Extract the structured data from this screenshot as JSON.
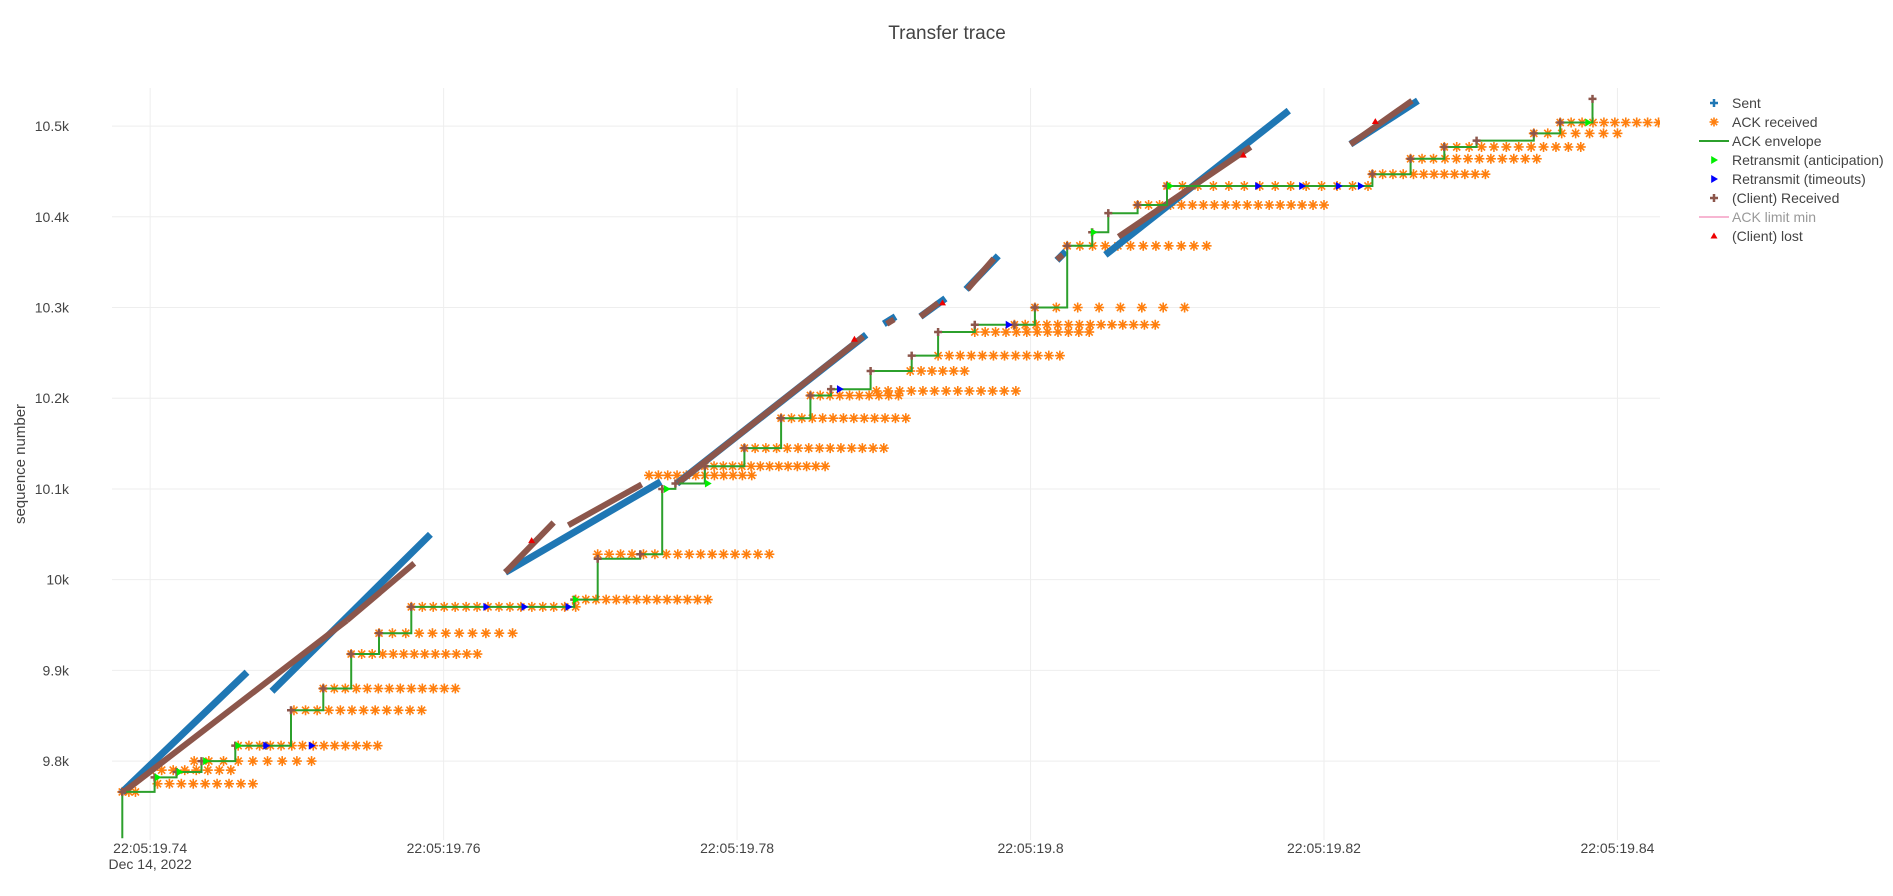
{
  "chart_data": {
    "type": "scatter",
    "title": "Transfer trace",
    "xlabel": "",
    "ylabel": "sequence number",
    "x_range": [
      19.7374,
      19.8429
    ],
    "x_range_note": "seconds after 22:05 on Dec 14, 2022",
    "ylim": [
      9713,
      10542
    ],
    "grid": true,
    "legend_position": "right",
    "x_ticks": [
      {
        "value": 19.74,
        "label": "22:05:19.74",
        "sublabel": "Dec 14, 2022"
      },
      {
        "value": 19.76,
        "label": "22:05:19.76",
        "sublabel": ""
      },
      {
        "value": 19.78,
        "label": "22:05:19.78",
        "sublabel": ""
      },
      {
        "value": 19.8,
        "label": "22:05:19.8",
        "sublabel": ""
      },
      {
        "value": 19.82,
        "label": "22:05:19.82",
        "sublabel": ""
      },
      {
        "value": 19.84,
        "label": "22:05:19.84",
        "sublabel": ""
      }
    ],
    "y_ticks": [
      {
        "value": 9800,
        "label": "9.8k"
      },
      {
        "value": 9900,
        "label": "9.9k"
      },
      {
        "value": 10000,
        "label": "10k"
      },
      {
        "value": 10100,
        "label": "10.1k"
      },
      {
        "value": 10200,
        "label": "10.2k"
      },
      {
        "value": 10300,
        "label": "10.3k"
      },
      {
        "value": 10400,
        "label": "10.4k"
      },
      {
        "value": 10500,
        "label": "10.5k"
      }
    ],
    "legend": [
      {
        "name": "Sent",
        "color": "#1f77b4",
        "symbol": "cross",
        "enabled": true
      },
      {
        "name": "ACK received",
        "color": "#ff7f0e",
        "symbol": "asterisk",
        "enabled": true
      },
      {
        "name": "ACK envelope",
        "color": "#2ca02c",
        "symbol": "line",
        "enabled": true
      },
      {
        "name": "Retransmit (anticipation)",
        "color": "#00ee00",
        "symbol": "triangle-right",
        "enabled": true
      },
      {
        "name": "Retransmit (timeouts)",
        "color": "#0000ff",
        "symbol": "triangle-right",
        "enabled": true
      },
      {
        "name": "(Client) Received",
        "color": "#8c564b",
        "symbol": "cross",
        "enabled": true
      },
      {
        "name": "ACK limit min",
        "color": "#f7b6d2",
        "symbol": "line",
        "enabled": false
      },
      {
        "name": "(Client) lost",
        "color": "#ee0000",
        "symbol": "triangle-up",
        "enabled": true
      }
    ],
    "series": [
      {
        "name": "Sent",
        "color": "#1f77b4",
        "segments": [
          [
            [
              19.7381,
              9766
            ],
            [
              19.7466,
              9898
            ]
          ],
          [
            [
              19.7483,
              9877
            ],
            [
              19.7591,
              10050
            ]
          ],
          [
            [
              19.7642,
              10008
            ],
            [
              19.7748,
              10108
            ]
          ],
          [
            [
              19.7759,
              10106
            ],
            [
              19.7888,
              10270
            ]
          ],
          [
            [
              19.79,
              10282
            ],
            [
              19.7908,
              10290
            ]
          ],
          [
            [
              19.7925,
              10290
            ],
            [
              19.7942,
              10310
            ]
          ],
          [
            [
              19.7956,
              10320
            ],
            [
              19.7978,
              10357
            ]
          ],
          [
            [
              19.8018,
              10352
            ],
            [
              19.8024,
              10362
            ]
          ],
          [
            [
              19.8051,
              10358
            ],
            [
              19.8176,
              10517
            ]
          ],
          [
            [
              19.8218,
              10480
            ],
            [
              19.8264,
              10528
            ]
          ]
        ]
      },
      {
        "name": "(Client) Received",
        "color": "#8c564b",
        "segments": [
          [
            [
              19.7382,
              9766
            ],
            [
              19.7534,
              9955
            ]
          ],
          [
            [
              19.7534,
              9955
            ],
            [
              19.758,
              10018
            ]
          ],
          [
            [
              19.7642,
              10008
            ],
            [
              19.7675,
              10063
            ]
          ],
          [
            [
              19.7685,
              10060
            ],
            [
              19.7735,
              10105
            ]
          ],
          [
            [
              19.776,
              10107
            ],
            [
              19.7886,
              10268
            ]
          ],
          [
            [
              19.7902,
              10282
            ],
            [
              19.7907,
              10287
            ]
          ],
          [
            [
              19.7925,
              10290
            ],
            [
              19.7937,
              10305
            ]
          ],
          [
            [
              19.7957,
              10320
            ],
            [
              19.7975,
              10354
            ]
          ],
          [
            [
              19.8018,
              10353
            ],
            [
              19.8022,
              10358
            ]
          ],
          [
            [
              19.806,
              10378
            ],
            [
              19.815,
              10477
            ]
          ],
          [
            [
              19.8218,
              10480
            ],
            [
              19.826,
              10528
            ]
          ]
        ]
      },
      {
        "name": "ACK envelope",
        "color": "#2ca02c",
        "steps": [
          [
            19.7381,
            9715
          ],
          [
            19.7381,
            9766
          ],
          [
            19.7403,
            9766
          ],
          [
            19.7403,
            9782
          ],
          [
            19.7418,
            9782
          ],
          [
            19.7418,
            9788
          ],
          [
            19.7435,
            9788
          ],
          [
            19.7435,
            9800
          ],
          [
            19.7458,
            9800
          ],
          [
            19.7458,
            9817
          ],
          [
            19.7479,
            9817
          ],
          [
            19.7479,
            9817
          ],
          [
            19.7496,
            9817
          ],
          [
            19.7496,
            9856
          ],
          [
            19.7518,
            9856
          ],
          [
            19.7518,
            9880
          ],
          [
            19.7537,
            9880
          ],
          [
            19.7537,
            9918
          ],
          [
            19.7556,
            9918
          ],
          [
            19.7556,
            9941
          ],
          [
            19.7578,
            9941
          ],
          [
            19.7578,
            9970
          ],
          [
            19.7689,
            9970
          ],
          [
            19.7689,
            9978
          ],
          [
            19.7705,
            9978
          ],
          [
            19.7705,
            10023
          ],
          [
            19.7734,
            10023
          ],
          [
            19.7734,
            10028
          ],
          [
            19.7749,
            10028
          ],
          [
            19.7749,
            10100
          ],
          [
            19.7758,
            10100
          ],
          [
            19.7758,
            10106
          ],
          [
            19.7778,
            10106
          ],
          [
            19.7778,
            10125
          ],
          [
            19.7805,
            10125
          ],
          [
            19.7805,
            10145
          ],
          [
            19.783,
            10145
          ],
          [
            19.783,
            10178
          ],
          [
            19.785,
            10178
          ],
          [
            19.785,
            10203
          ],
          [
            19.7864,
            10203
          ],
          [
            19.7864,
            10210
          ],
          [
            19.7891,
            10210
          ],
          [
            19.7891,
            10230
          ],
          [
            19.7919,
            10230
          ],
          [
            19.7919,
            10247
          ],
          [
            19.7937,
            10247
          ],
          [
            19.7937,
            10273
          ],
          [
            19.7962,
            10273
          ],
          [
            19.7962,
            10281
          ],
          [
            19.7989,
            10281
          ],
          [
            19.7989,
            10281
          ],
          [
            19.8003,
            10281
          ],
          [
            19.8003,
            10300
          ],
          [
            19.8025,
            10300
          ],
          [
            19.8025,
            10368
          ],
          [
            19.8042,
            10368
          ],
          [
            19.8042,
            10383
          ],
          [
            19.8053,
            10383
          ],
          [
            19.8053,
            10404
          ],
          [
            19.8073,
            10404
          ],
          [
            19.8073,
            10413
          ],
          [
            19.8093,
            10413
          ],
          [
            19.8093,
            10434
          ],
          [
            19.8233,
            10434
          ],
          [
            19.8233,
            10447
          ],
          [
            19.8259,
            10447
          ],
          [
            19.8259,
            10464
          ],
          [
            19.8282,
            10464
          ],
          [
            19.8282,
            10477
          ],
          [
            19.8304,
            10477
          ],
          [
            19.8304,
            10484
          ],
          [
            19.8343,
            10484
          ],
          [
            19.8343,
            10492
          ],
          [
            19.8361,
            10492
          ],
          [
            19.8361,
            10504
          ],
          [
            19.8383,
            10504
          ],
          [
            19.8383,
            10530
          ]
        ]
      },
      {
        "name": "ACK received",
        "color": "#ff7f0e",
        "rows": [
          {
            "y": 9766,
            "x0": 19.7381,
            "x1": 19.739,
            "n": 3
          },
          {
            "y": 9775,
            "x0": 19.7405,
            "x1": 19.747,
            "n": 9
          },
          {
            "y": 9790,
            "x0": 19.74,
            "x1": 19.7455,
            "n": 8
          },
          {
            "y": 9800,
            "x0": 19.743,
            "x1": 19.751,
            "n": 9
          },
          {
            "y": 9817,
            "x0": 19.746,
            "x1": 19.7555,
            "n": 14
          },
          {
            "y": 9856,
            "x0": 19.7498,
            "x1": 19.7585,
            "n": 12
          },
          {
            "y": 9880,
            "x0": 19.7518,
            "x1": 19.7608,
            "n": 13
          },
          {
            "y": 9918,
            "x0": 19.7537,
            "x1": 19.7623,
            "n": 13
          },
          {
            "y": 9941,
            "x0": 19.7556,
            "x1": 19.7647,
            "n": 11
          },
          {
            "y": 9970,
            "x0": 19.7578,
            "x1": 19.769,
            "n": 16
          },
          {
            "y": 9978,
            "x0": 19.769,
            "x1": 19.778,
            "n": 14
          },
          {
            "y": 10028,
            "x0": 19.7705,
            "x1": 19.7822,
            "n": 16
          },
          {
            "y": 10115,
            "x0": 19.774,
            "x1": 19.781,
            "n": 12
          },
          {
            "y": 10125,
            "x0": 19.7778,
            "x1": 19.786,
            "n": 14
          },
          {
            "y": 10145,
            "x0": 19.7805,
            "x1": 19.79,
            "n": 14
          },
          {
            "y": 10178,
            "x0": 19.783,
            "x1": 19.7915,
            "n": 13
          },
          {
            "y": 10203,
            "x0": 19.785,
            "x1": 19.791,
            "n": 10
          },
          {
            "y": 10208,
            "x0": 19.7895,
            "x1": 19.799,
            "n": 13
          },
          {
            "y": 10230,
            "x0": 19.7918,
            "x1": 19.7955,
            "n": 6
          },
          {
            "y": 10247,
            "x0": 19.7937,
            "x1": 19.802,
            "n": 12
          },
          {
            "y": 10273,
            "x0": 19.7962,
            "x1": 19.804,
            "n": 12
          },
          {
            "y": 10281,
            "x0": 19.7989,
            "x1": 19.8085,
            "n": 14
          },
          {
            "y": 10300,
            "x0": 19.8003,
            "x1": 19.8105,
            "n": 8
          },
          {
            "y": 10368,
            "x0": 19.8025,
            "x1": 19.812,
            "n": 12
          },
          {
            "y": 10413,
            "x0": 19.8073,
            "x1": 19.82,
            "n": 18
          },
          {
            "y": 10434,
            "x0": 19.8093,
            "x1": 19.823,
            "n": 14
          },
          {
            "y": 10447,
            "x0": 19.8233,
            "x1": 19.831,
            "n": 12
          },
          {
            "y": 10464,
            "x0": 19.8259,
            "x1": 19.8345,
            "n": 12
          },
          {
            "y": 10477,
            "x0": 19.8282,
            "x1": 19.8375,
            "n": 12
          },
          {
            "y": 10492,
            "x0": 19.8343,
            "x1": 19.84,
            "n": 7
          },
          {
            "y": 10504,
            "x0": 19.8361,
            "x1": 19.8428,
            "n": 10
          }
        ]
      },
      {
        "name": "Retransmit (anticipation)",
        "color": "#00ee00",
        "points": [
          [
            19.7405,
            9782
          ],
          [
            19.742,
            9788
          ],
          [
            19.7438,
            9800
          ],
          [
            19.746,
            9817
          ],
          [
            19.769,
            9978
          ],
          [
            19.7752,
            10100
          ],
          [
            19.778,
            10106
          ],
          [
            19.8043,
            10383
          ],
          [
            19.8095,
            10434
          ],
          [
            19.838,
            10504
          ]
        ]
      },
      {
        "name": "Retransmit (timeouts)",
        "color": "#0000ff",
        "points": [
          [
            19.7479,
            9817
          ],
          [
            19.751,
            9817
          ],
          [
            19.7629,
            9970
          ],
          [
            19.7655,
            9970
          ],
          [
            19.7685,
            9970
          ],
          [
            19.787,
            10210
          ],
          [
            19.7985,
            10281
          ],
          [
            19.8155,
            10434
          ],
          [
            19.8185,
            10434
          ],
          [
            19.821,
            10434
          ],
          [
            19.8225,
            10434
          ]
        ]
      },
      {
        "name": "(Client) lost",
        "color": "#ee0000",
        "points": [
          [
            19.766,
            10043
          ],
          [
            19.788,
            10265
          ],
          [
            19.794,
            10305
          ],
          [
            19.8145,
            10468
          ],
          [
            19.8235,
            10505
          ]
        ]
      }
    ]
  }
}
